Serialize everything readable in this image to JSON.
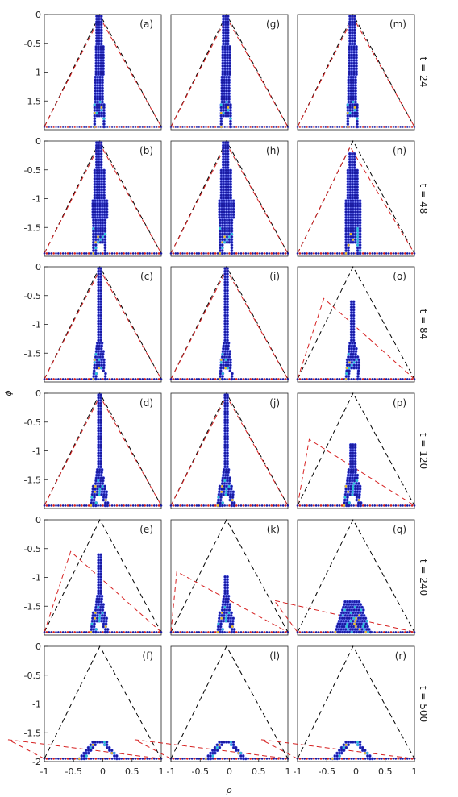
{
  "chart_data": {
    "type": "scatter",
    "grid": false,
    "layout": "6 rows x 3 columns of panels sharing axes",
    "xlabel": "ρ",
    "ylabel": "ϕ",
    "xlim": [
      -1,
      1
    ],
    "ylim": [
      -2,
      0
    ],
    "xticks": [
      {
        "value": -1,
        "label": "-1"
      },
      {
        "value": -0.5,
        "label": "-0.5"
      },
      {
        "value": 0,
        "label": "0"
      },
      {
        "value": 0.5,
        "label": "0.5"
      },
      {
        "value": 1,
        "label": "1"
      }
    ],
    "yticks": [
      {
        "value": 0,
        "label": "0"
      },
      {
        "value": -0.5,
        "label": "-0.5"
      },
      {
        "value": -1,
        "label": "-1"
      },
      {
        "value": -1.5,
        "label": "-1.5"
      },
      {
        "value": -2,
        "label": "-2"
      }
    ],
    "colors": {
      "outer_envelope": "#000000",
      "inner_envelope": "#d62020",
      "point_low": "#1a1aa0",
      "point_mid": "#28c8d0",
      "point_high": "#f0c020",
      "point_max": "#d02020"
    },
    "row_labels": [
      "t = 24",
      "t = 48",
      "t = 84",
      "t = 120",
      "t = 240",
      "t = 500"
    ],
    "panels": [
      {
        "label": "(a)",
        "row": 0,
        "col": 0,
        "apex": -0.05,
        "shape": "spire",
        "w": 0.09,
        "top_y": 0,
        "base_w": 0.18
      },
      {
        "label": "(g)",
        "row": 0,
        "col": 1,
        "apex": -0.05,
        "shape": "spire",
        "w": 0.09,
        "top_y": 0,
        "base_w": 0.18
      },
      {
        "label": "(m)",
        "row": 0,
        "col": 2,
        "apex": -0.05,
        "shape": "spire",
        "w": 0.09,
        "top_y": 0,
        "base_w": 0.18
      },
      {
        "label": "(b)",
        "row": 1,
        "col": 0,
        "apex": -0.05,
        "shape": "tower",
        "w": 0.16,
        "top_y": 0,
        "base_w": 0.22
      },
      {
        "label": "(h)",
        "row": 1,
        "col": 1,
        "apex": -0.05,
        "shape": "tower",
        "w": 0.16,
        "top_y": 0,
        "base_w": 0.22
      },
      {
        "label": "(n)",
        "row": 1,
        "col": 2,
        "apex": -0.1,
        "shape": "tower",
        "w": 0.16,
        "top_y": -0.2,
        "base_w": 0.24
      },
      {
        "label": "(c)",
        "row": 2,
        "col": 0,
        "apex": -0.05,
        "shape": "eiffel",
        "w": 0.04,
        "top_y": 0,
        "base_w": 0.22
      },
      {
        "label": "(i)",
        "row": 2,
        "col": 1,
        "apex": -0.05,
        "shape": "eiffel",
        "w": 0.04,
        "top_y": 0,
        "base_w": 0.22
      },
      {
        "label": "(o)",
        "row": 2,
        "col": 2,
        "apex": -0.55,
        "shape": "eiffel",
        "w": 0.05,
        "top_y": -0.6,
        "base_w": 0.24
      },
      {
        "label": "(d)",
        "row": 3,
        "col": 0,
        "apex": -0.05,
        "shape": "eiffel",
        "w": 0.04,
        "top_y": 0,
        "base_w": 0.3
      },
      {
        "label": "(j)",
        "row": 3,
        "col": 1,
        "apex": -0.05,
        "shape": "eiffel",
        "w": 0.04,
        "top_y": 0,
        "base_w": 0.3
      },
      {
        "label": "(p)",
        "row": 3,
        "col": 2,
        "apex": -0.8,
        "shape": "eiffel",
        "w": 0.07,
        "top_y": -0.85,
        "base_w": 0.3
      },
      {
        "label": "(e)",
        "row": 4,
        "col": 0,
        "apex": -0.55,
        "shape": "eiffel",
        "w": 0.04,
        "top_y": -0.6,
        "base_w": 0.3
      },
      {
        "label": "(k)",
        "row": 4,
        "col": 1,
        "apex": -0.9,
        "shape": "eiffel",
        "w": 0.04,
        "top_y": -0.95,
        "base_w": 0.3
      },
      {
        "label": "(q)",
        "row": 4,
        "col": 2,
        "apex": -1.4,
        "shape": "mound",
        "w": 0.3,
        "top_y": -1.42,
        "base_w": 0.3
      },
      {
        "label": "(f)",
        "row": 5,
        "col": 0,
        "apex": -1.62,
        "shape": "arch",
        "w": 0.04,
        "top_y": -1.62,
        "base_w": 0.35
      },
      {
        "label": "(l)",
        "row": 5,
        "col": 1,
        "apex": -1.62,
        "shape": "arch",
        "w": 0.04,
        "top_y": -1.62,
        "base_w": 0.35
      },
      {
        "label": "(r)",
        "row": 5,
        "col": 2,
        "apex": -1.62,
        "shape": "arch",
        "w": 0.04,
        "top_y": -1.62,
        "base_w": 0.35
      }
    ]
  }
}
